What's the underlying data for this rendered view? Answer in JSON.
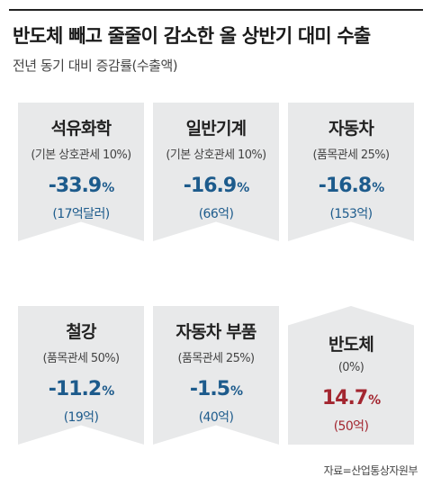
{
  "title": "반도체 빼고 줄줄이 감소한 올 상반기 대미 수출",
  "subtitle": "전년 동기 대비 증감률(수출액)",
  "source": "자료=산업통상자원부",
  "colors": {
    "negative": "#1d5b8c",
    "positive": "#a32630",
    "card": "#e8e9ea"
  },
  "chart_data": {
    "type": "table",
    "title": "반도체 빼고 줄줄이 감소한 올 상반기 대미 수출",
    "subtitle": "전년 동기 대비 증감률(수출액)",
    "items": [
      {
        "category": "석유화학",
        "tariff": "(기본 상호관세 10%)",
        "change_value": -33.9,
        "change": "-33.9",
        "unit": "%",
        "amount": "(17억달러)"
      },
      {
        "category": "일반기계",
        "tariff": "(기본 상호관세 10%)",
        "change_value": -16.9,
        "change": "-16.9",
        "unit": "%",
        "amount": "(66억)"
      },
      {
        "category": "자동차",
        "tariff": "(품목관세 25%)",
        "change_value": -16.8,
        "change": "-16.8",
        "unit": "%",
        "amount": "(153억)"
      },
      {
        "category": "철강",
        "tariff": "(품목관세 50%)",
        "change_value": -11.2,
        "change": "-11.2",
        "unit": "%",
        "amount": "(19억)"
      },
      {
        "category": "자동차 부품",
        "tariff": "(품목관세 25%)",
        "change_value": -1.5,
        "change": "-1.5",
        "unit": "%",
        "amount": "(40억)"
      },
      {
        "category": "반도체",
        "tariff": "(0%)",
        "change_value": 14.7,
        "change": "14.7",
        "unit": "%",
        "amount": "(50억)"
      }
    ]
  }
}
